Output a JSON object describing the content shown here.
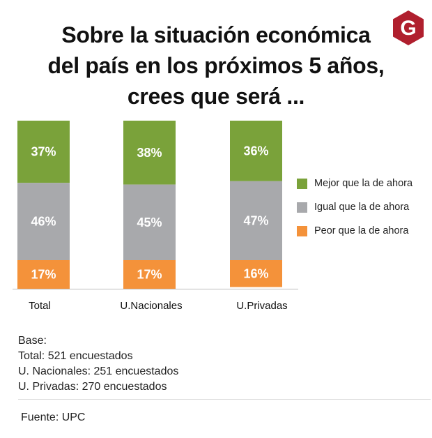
{
  "title_lines": [
    "Sobre la situación económica",
    "del país en los próximos 5 años,",
    "crees que será ..."
  ],
  "logo": {
    "letter": "G",
    "icon": "g-logo-icon"
  },
  "colors": {
    "mejor": "#7aa23a",
    "igual": "#a8a9ac",
    "peor": "#f4923a",
    "logo_bg": "#b01f2e",
    "axis": "#bbbbbb"
  },
  "chart_data": {
    "type": "bar",
    "stacked": true,
    "title": "Sobre la situación económica del país en los próximos 5 años, crees que será ...",
    "categories": [
      "Total",
      "U.Nacionales",
      "U.Privadas"
    ],
    "series": [
      {
        "name": "Mejor que la de ahora",
        "key": "mejor",
        "values": [
          37,
          38,
          36
        ],
        "labels": [
          "37%",
          "38%",
          "36%"
        ]
      },
      {
        "name": "Igual que la de ahora",
        "key": "igual",
        "values": [
          46,
          45,
          47
        ],
        "labels": [
          "46%",
          "45%",
          "47%"
        ]
      },
      {
        "name": "Peor que la de ahora",
        "key": "peor",
        "values": [
          17,
          17,
          16
        ],
        "labels": [
          "17%",
          "17%",
          "16%"
        ]
      }
    ],
    "ylim": [
      0,
      100
    ],
    "xlabel": "",
    "ylabel": "",
    "legend_position": "right"
  },
  "base": {
    "heading": "Base:",
    "lines": [
      "Total: 521 encuestados",
      "U. Nacionales: 251 encuestados",
      "U. Privadas: 270 encuestados"
    ]
  },
  "source": "Fuente: UPC"
}
